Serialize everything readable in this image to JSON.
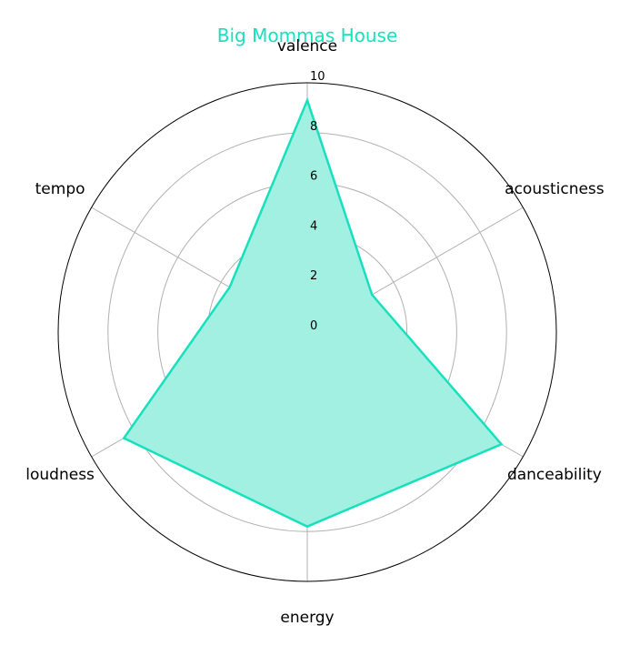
{
  "chart_data": {
    "type": "radar",
    "title": "Big Mommas House",
    "axes": [
      "valence",
      "acousticness",
      "danceability",
      "energy",
      "loudness",
      "tempo"
    ],
    "series": [
      {
        "values": [
          9.3,
          3.0,
          9.0,
          7.8,
          8.5,
          3.6
        ]
      }
    ],
    "rlim": [
      0,
      10
    ],
    "rticks": [
      "0",
      "2",
      "4",
      "6",
      "8",
      "10"
    ],
    "grid": true,
    "colors": {
      "series": "#19e0bc",
      "fill": "#a1f0e2",
      "grid": "#b0b0b0",
      "title": "#19e0bc"
    }
  }
}
